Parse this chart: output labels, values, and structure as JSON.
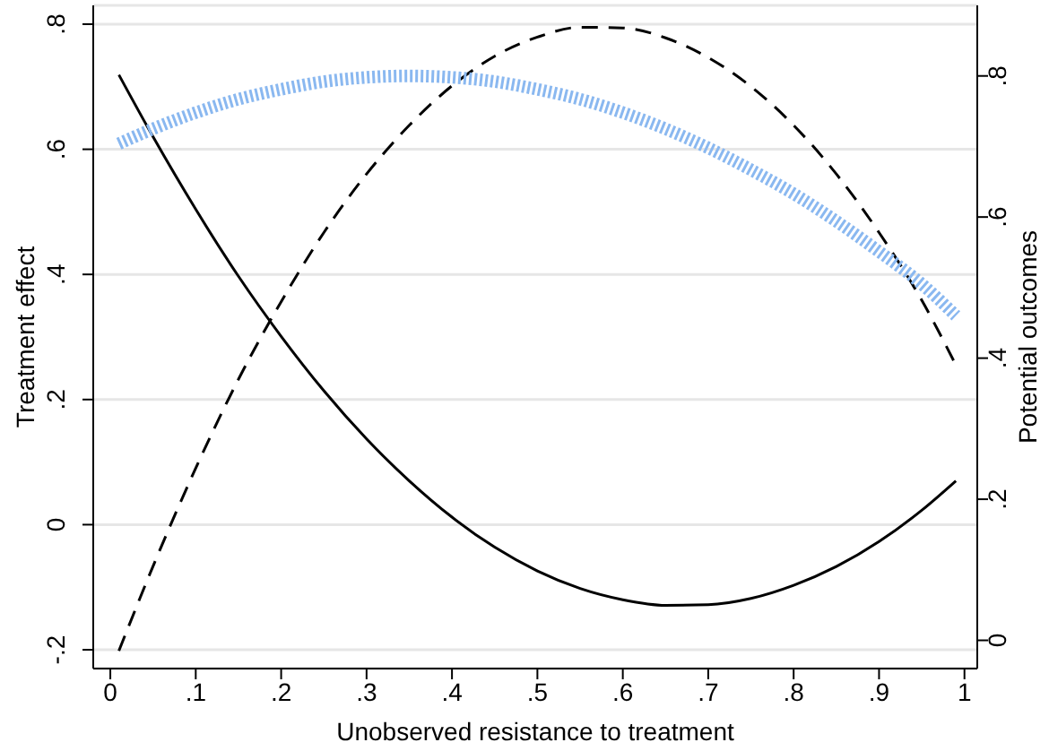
{
  "chart_data": {
    "type": "line",
    "xlabel": "Unobserved resistance to treatment",
    "ylabel": "Treatment effect",
    "y2label": "Potential outcomes",
    "x": [
      0.01,
      0.05,
      0.1,
      0.15,
      0.2,
      0.25,
      0.3,
      0.35,
      0.4,
      0.45,
      0.5,
      0.55,
      0.6,
      0.65,
      0.7,
      0.75,
      0.8,
      0.85,
      0.9,
      0.95,
      0.99
    ],
    "series": [
      {
        "color": "#000000",
        "line_style": "solid",
        "values": [
          0.719,
          0.62,
          0.504,
          0.397,
          0.301,
          0.214,
          0.137,
          0.07,
          0.012,
          -0.036,
          -0.074,
          -0.102,
          -0.12,
          -0.129,
          -0.128,
          -0.118,
          -0.097,
          -0.067,
          -0.027,
          0.023,
          0.07
        ]
      },
      {
        "color": "#000000",
        "line_style": "dashed",
        "axis": "y2",
        "values": [
          -0.015,
          0.105,
          0.244,
          0.37,
          0.48,
          0.578,
          0.661,
          0.73,
          0.786,
          0.828,
          0.855,
          0.869,
          0.868,
          0.854,
          0.826,
          0.785,
          0.73,
          0.661,
          0.578,
          0.482,
          0.39
        ]
      },
      {
        "color": "#8ab8f0",
        "line_style": "dotted",
        "axis": "y2",
        "values": [
          0.704,
          0.725,
          0.748,
          0.767,
          0.781,
          0.792,
          0.798,
          0.8,
          0.798,
          0.792,
          0.781,
          0.767,
          0.748,
          0.725,
          0.698,
          0.667,
          0.633,
          0.594,
          0.551,
          0.505,
          0.46
        ]
      }
    ],
    "xlim": [
      -0.02,
      1.015
    ],
    "xticks": [
      0,
      {
        "value": 0.1,
        "label": ".1"
      },
      {
        "value": 0.2,
        "label": ".2"
      },
      {
        "value": 0.3,
        "label": ".3"
      },
      {
        "value": 0.4,
        "label": ".4"
      },
      {
        "value": 0.5,
        "label": ".5"
      },
      {
        "value": 0.6,
        "label": ".6"
      },
      {
        "value": 0.7,
        "label": ".7"
      },
      {
        "value": 0.8,
        "label": ".8"
      },
      {
        "value": 0.9,
        "label": ".9"
      },
      1
    ],
    "ylim": [
      -0.23,
      0.83
    ],
    "yticks": [
      {
        "value": -0.2,
        "label": "-.2"
      },
      0,
      {
        "value": 0.2,
        "label": ".2"
      },
      {
        "value": 0.4,
        "label": ".4"
      },
      {
        "value": 0.6,
        "label": ".6"
      },
      {
        "value": 0.8,
        "label": ".8"
      }
    ],
    "y2lim": [
      -0.04,
      0.9
    ],
    "y2ticks": [
      0,
      {
        "value": 0.2,
        "label": ".2"
      },
      {
        "value": 0.4,
        "label": ".4"
      },
      {
        "value": 0.6,
        "label": ".6"
      },
      {
        "value": 0.8,
        "label": ".8"
      }
    ],
    "grid": "y",
    "legend": false,
    "marker": "none"
  }
}
